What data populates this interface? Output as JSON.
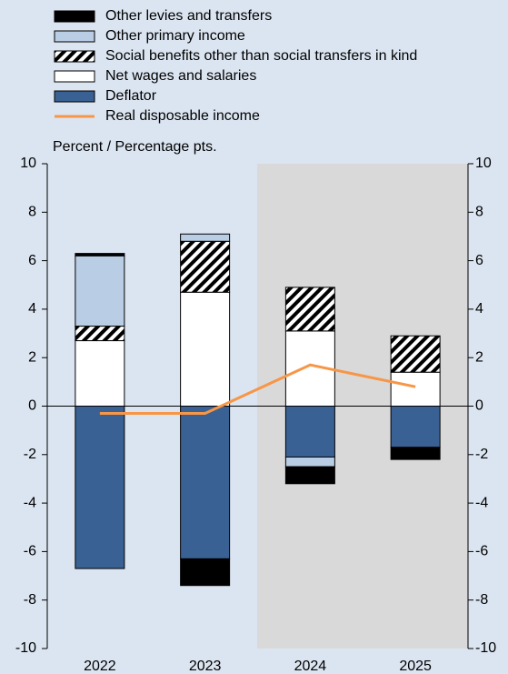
{
  "chart_data": {
    "type": "bar",
    "y_label": "Percent / Percentage pts.",
    "categories": [
      "2022",
      "2023",
      "2024",
      "2025"
    ],
    "series": [
      {
        "name": "Other levies and transfers",
        "color": "#000000",
        "values": [
          0.1,
          -1.1,
          -0.7,
          -0.5
        ]
      },
      {
        "name": "Other primary income",
        "color": "#b9cde5",
        "values": [
          2.9,
          0.3,
          -0.4,
          0
        ]
      },
      {
        "name": "Social benefits other than social transfers in kind",
        "color": "#000000",
        "hatch": true,
        "values": [
          0.6,
          2.1,
          1.8,
          1.5
        ]
      },
      {
        "name": "Net wages and salaries",
        "color": "#ffffff",
        "values": [
          2.7,
          4.7,
          3.1,
          1.4
        ]
      },
      {
        "name": "Deflator",
        "color": "#3a6194",
        "values": [
          -6.7,
          -6.3,
          -2.1,
          -1.7
        ]
      },
      {
        "name": "Real disposable income",
        "type": "line",
        "color": "#f79646",
        "values": [
          -0.3,
          -0.3,
          1.7,
          0.8
        ]
      }
    ],
    "stack_order": [
      4,
      3,
      2,
      1,
      0
    ],
    "ylim": [
      -10,
      10
    ],
    "yticks": [
      -10,
      -8,
      -6,
      -4,
      -2,
      0,
      2,
      4,
      6,
      8,
      10
    ],
    "y2lim": [
      -10,
      10
    ],
    "y2ticks": [
      -10,
      -8,
      -6,
      -4,
      -2,
      0,
      2,
      4,
      6,
      8,
      10
    ]
  }
}
